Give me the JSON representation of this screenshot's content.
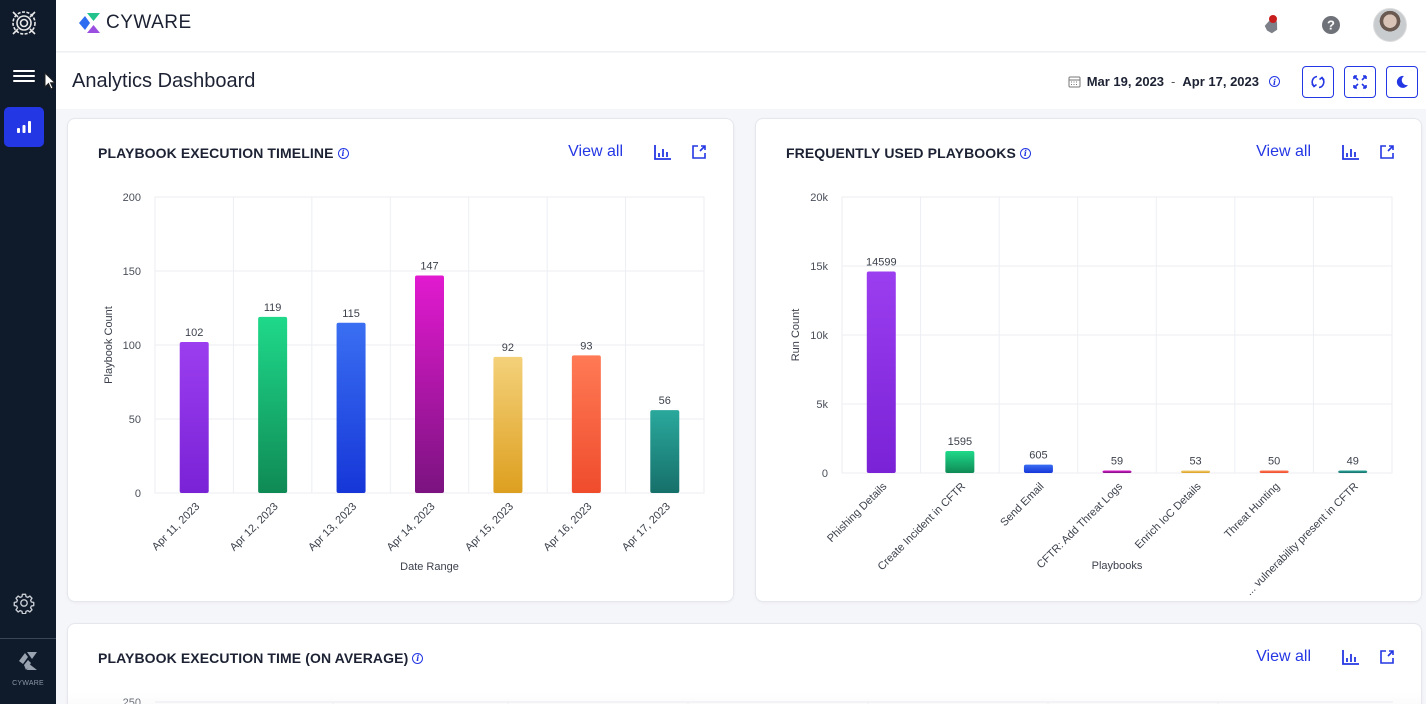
{
  "brand": {
    "name": "CYWARE",
    "sidebar_brand": "CYWARE"
  },
  "header": {
    "title": "Analytics Dashboard",
    "date_from": "Mar 19, 2023",
    "date_sep": "-",
    "date_to": "Apr 17, 2023"
  },
  "icons": {
    "sidebar": [
      "app-logo-icon",
      "hamburger-menu-icon",
      "analytics-icon",
      "settings-icon"
    ],
    "top": [
      "notifications-icon",
      "help-icon",
      "user-avatar"
    ],
    "actions": [
      "refresh-icon",
      "fullscreen-icon",
      "dark-mode-icon"
    ]
  },
  "colors": {
    "accent": "#2437e4",
    "sidebar_bg": "#0f1a2b"
  },
  "cards": [
    {
      "title": "PLAYBOOK EXECUTION TIMELINE",
      "view_all": "View all"
    },
    {
      "title": "FREQUENTLY USED PLAYBOOKS",
      "view_all": "View all"
    },
    {
      "title": "PLAYBOOK EXECUTION TIME (ON AVERAGE)",
      "view_all": "View all"
    }
  ],
  "chart_data": [
    {
      "type": "bar",
      "title": "PLAYBOOK EXECUTION TIMELINE",
      "xlabel": "Date Range",
      "ylabel": "Playbook Count",
      "ylim": [
        0,
        200
      ],
      "yticks": [
        "0",
        "50",
        "100",
        "150",
        "200"
      ],
      "ytick_values": [
        0,
        50,
        100,
        150,
        200
      ],
      "categories": [
        "Apr 11, 2023",
        "Apr 12, 2023",
        "Apr 13, 2023",
        "Apr 14, 2023",
        "Apr 15, 2023",
        "Apr 16, 2023",
        "Apr 17, 2023"
      ],
      "values": [
        102,
        119,
        115,
        147,
        92,
        93,
        56
      ],
      "colors": [
        [
          "#9b3ef0",
          "#7a22d6"
        ],
        [
          "#1fd98a",
          "#0f8a55"
        ],
        [
          "#3a6ff2",
          "#1636d8"
        ],
        [
          "#e21ad0",
          "#7b1380"
        ],
        [
          "#f4d17a",
          "#dd9f1f"
        ],
        [
          "#ff7a55",
          "#ef4c2c"
        ],
        [
          "#2aa89c",
          "#16706a"
        ]
      ],
      "grid": true
    },
    {
      "type": "bar",
      "title": "FREQUENTLY USED PLAYBOOKS",
      "xlabel": "Playbooks",
      "ylabel": "Run Count",
      "ylim": [
        0,
        20000
      ],
      "yticks": [
        "0",
        "5k",
        "10k",
        "15k",
        "20k"
      ],
      "ytick_values": [
        0,
        5000,
        10000,
        15000,
        20000
      ],
      "categories": [
        "Phishing Details",
        "Create Incident in CFTR",
        "Send Email",
        "CFTR: Add Threat Logs",
        "Enrich IoC Details",
        "Threat Hunting",
        "... vulnerability present in CFTR"
      ],
      "values": [
        14599,
        1595,
        605,
        59,
        53,
        50,
        49
      ],
      "colors": [
        [
          "#9b3ef0",
          "#7a22d6"
        ],
        [
          "#1fd98a",
          "#0f8a55"
        ],
        [
          "#3a6ff2",
          "#1636d8"
        ],
        [
          "#e21ad0",
          "#7b1380"
        ],
        [
          "#f4d17a",
          "#dd9f1f"
        ],
        [
          "#ff7a55",
          "#ef4c2c"
        ],
        [
          "#2aa89c",
          "#16706a"
        ]
      ],
      "grid": true
    },
    {
      "type": "bar",
      "title": "PLAYBOOK EXECUTION TIME (ON AVERAGE)",
      "yticks": [
        "250"
      ],
      "ytick_values": [
        250
      ]
    }
  ]
}
